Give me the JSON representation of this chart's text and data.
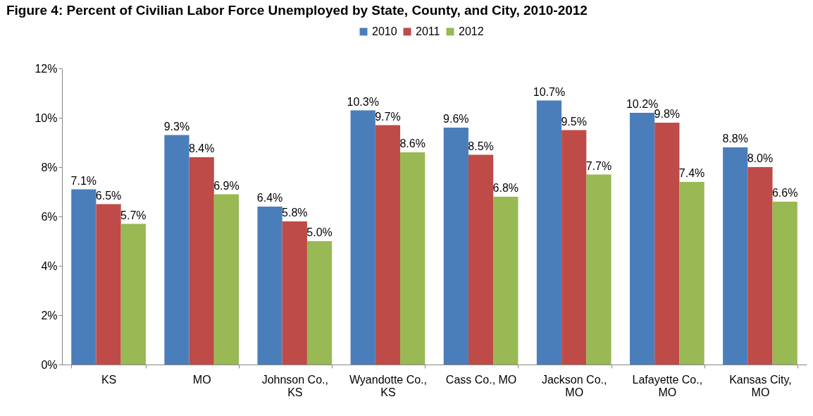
{
  "chart_data": {
    "type": "bar",
    "title": "Figure 4: Percent of Civilian Labor Force Unemployed by State, County, and City, 2010-2012",
    "categories": [
      "KS",
      "MO",
      "Johnson Co., KS",
      "Wyandotte Co., KS",
      "Cass Co., MO",
      "Jackson Co., MO",
      "Lafayette Co., MO",
      "Kansas City, MO"
    ],
    "series": [
      {
        "name": "2010",
        "color": "#4a7ebb",
        "values": [
          7.1,
          9.3,
          6.4,
          10.3,
          9.6,
          10.7,
          10.2,
          8.8
        ],
        "value_labels": [
          "7.1%",
          "9.3%",
          "6.4%",
          "10.3%",
          "9.6%",
          "10.7%",
          "10.2%",
          "8.8%"
        ]
      },
      {
        "name": "2011",
        "color": "#be4b48",
        "values": [
          6.5,
          8.4,
          5.8,
          9.7,
          8.5,
          9.5,
          9.8,
          8.0
        ],
        "value_labels": [
          "6.5%",
          "8.4%",
          "5.8%",
          "9.7%",
          "8.5%",
          "9.5%",
          "9.8%",
          "8.0%"
        ]
      },
      {
        "name": "2012",
        "color": "#98b954",
        "values": [
          5.7,
          6.9,
          5.0,
          8.6,
          6.8,
          7.7,
          7.4,
          6.6
        ],
        "value_labels": [
          "5.7%",
          "6.9%",
          "5.0%",
          "8.6%",
          "6.8%",
          "7.7%",
          "7.4%",
          "6.6%"
        ]
      }
    ],
    "ylim": [
      0,
      12
    ],
    "yticks": [
      {
        "value": 0,
        "label": "0%"
      },
      {
        "value": 2,
        "label": "2%"
      },
      {
        "value": 4,
        "label": "4%"
      },
      {
        "value": 6,
        "label": "6%"
      },
      {
        "value": 8,
        "label": "8%"
      },
      {
        "value": 10,
        "label": "10%"
      },
      {
        "value": 12,
        "label": "12%"
      }
    ],
    "grid": false,
    "legend": "top"
  }
}
